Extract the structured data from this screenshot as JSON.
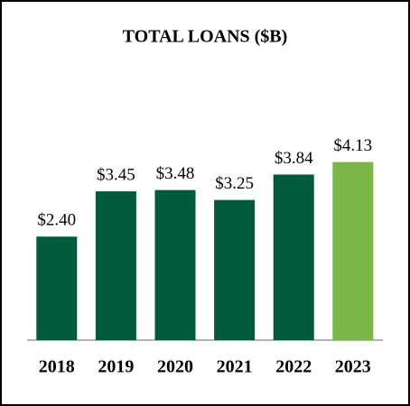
{
  "chart_data": {
    "type": "bar",
    "title": "TOTAL LOANS ($B)",
    "categories": [
      "2018",
      "2019",
      "2020",
      "2021",
      "2022",
      "2023"
    ],
    "values": [
      2.4,
      3.45,
      3.48,
      3.25,
      3.84,
      4.13
    ],
    "value_labels": [
      "$2.40",
      "$3.45",
      "$3.48",
      "$3.25",
      "$3.84",
      "$4.13"
    ],
    "colors": [
      "#005a3c",
      "#005a3c",
      "#005a3c",
      "#005a3c",
      "#005a3c",
      "#7ab648"
    ]
  }
}
